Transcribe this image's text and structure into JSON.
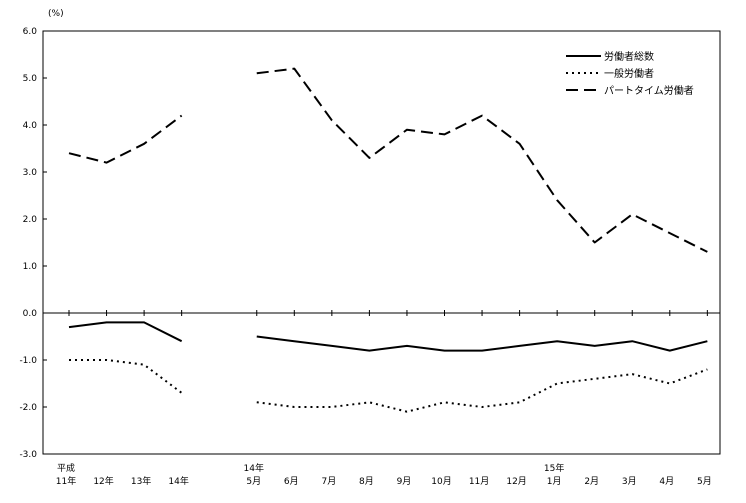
{
  "chart_data": {
    "type": "line",
    "unit_label": "(%)",
    "ylim": [
      -3.0,
      6.0
    ],
    "y_ticks": [
      "6.0",
      "5.0",
      "4.0",
      "3.0",
      "2.0",
      "1.0",
      "0.0",
      "-1.0",
      "-2.0",
      "-3.0"
    ],
    "x_tick_labels": [
      {
        "top": "平成",
        "bottom": "11年"
      },
      {
        "top": "",
        "bottom": "12年"
      },
      {
        "top": "",
        "bottom": "13年"
      },
      {
        "top": "",
        "bottom": "14年"
      },
      {
        "top": "",
        "bottom": ""
      },
      {
        "top": "14年",
        "bottom": "5月"
      },
      {
        "top": "",
        "bottom": "6月"
      },
      {
        "top": "",
        "bottom": "7月"
      },
      {
        "top": "",
        "bottom": "8月"
      },
      {
        "top": "",
        "bottom": "9月"
      },
      {
        "top": "",
        "bottom": "10月"
      },
      {
        "top": "",
        "bottom": "11月"
      },
      {
        "top": "",
        "bottom": "12月"
      },
      {
        "top": "15年",
        "bottom": "1月"
      },
      {
        "top": "",
        "bottom": "2月"
      },
      {
        "top": "",
        "bottom": "3月"
      },
      {
        "top": "",
        "bottom": "4月"
      },
      {
        "top": "",
        "bottom": "5月"
      }
    ],
    "series": [
      {
        "name": "労働者総数",
        "style": "solid",
        "values": [
          -0.3,
          -0.2,
          -0.2,
          -0.6,
          null,
          -0.5,
          -0.6,
          -0.7,
          -0.8,
          -0.7,
          -0.8,
          -0.8,
          -0.7,
          -0.6,
          -0.7,
          -0.6,
          -0.8,
          -0.6
        ]
      },
      {
        "name": "一般労働者",
        "style": "dotted",
        "values": [
          -1.0,
          -1.0,
          -1.1,
          -1.7,
          null,
          -1.9,
          -2.0,
          -2.0,
          -1.9,
          -2.1,
          -1.9,
          -2.0,
          -1.9,
          -1.5,
          -1.4,
          -1.3,
          -1.5,
          -1.2
        ]
      },
      {
        "name": "パートタイム労働者",
        "style": "dashed",
        "values": [
          3.4,
          3.2,
          3.6,
          4.2,
          null,
          5.1,
          5.2,
          4.1,
          3.3,
          3.9,
          3.8,
          4.2,
          3.6,
          2.4,
          1.5,
          2.1,
          1.7,
          1.3
        ]
      }
    ],
    "legend_position": "top-right",
    "grid": false
  }
}
